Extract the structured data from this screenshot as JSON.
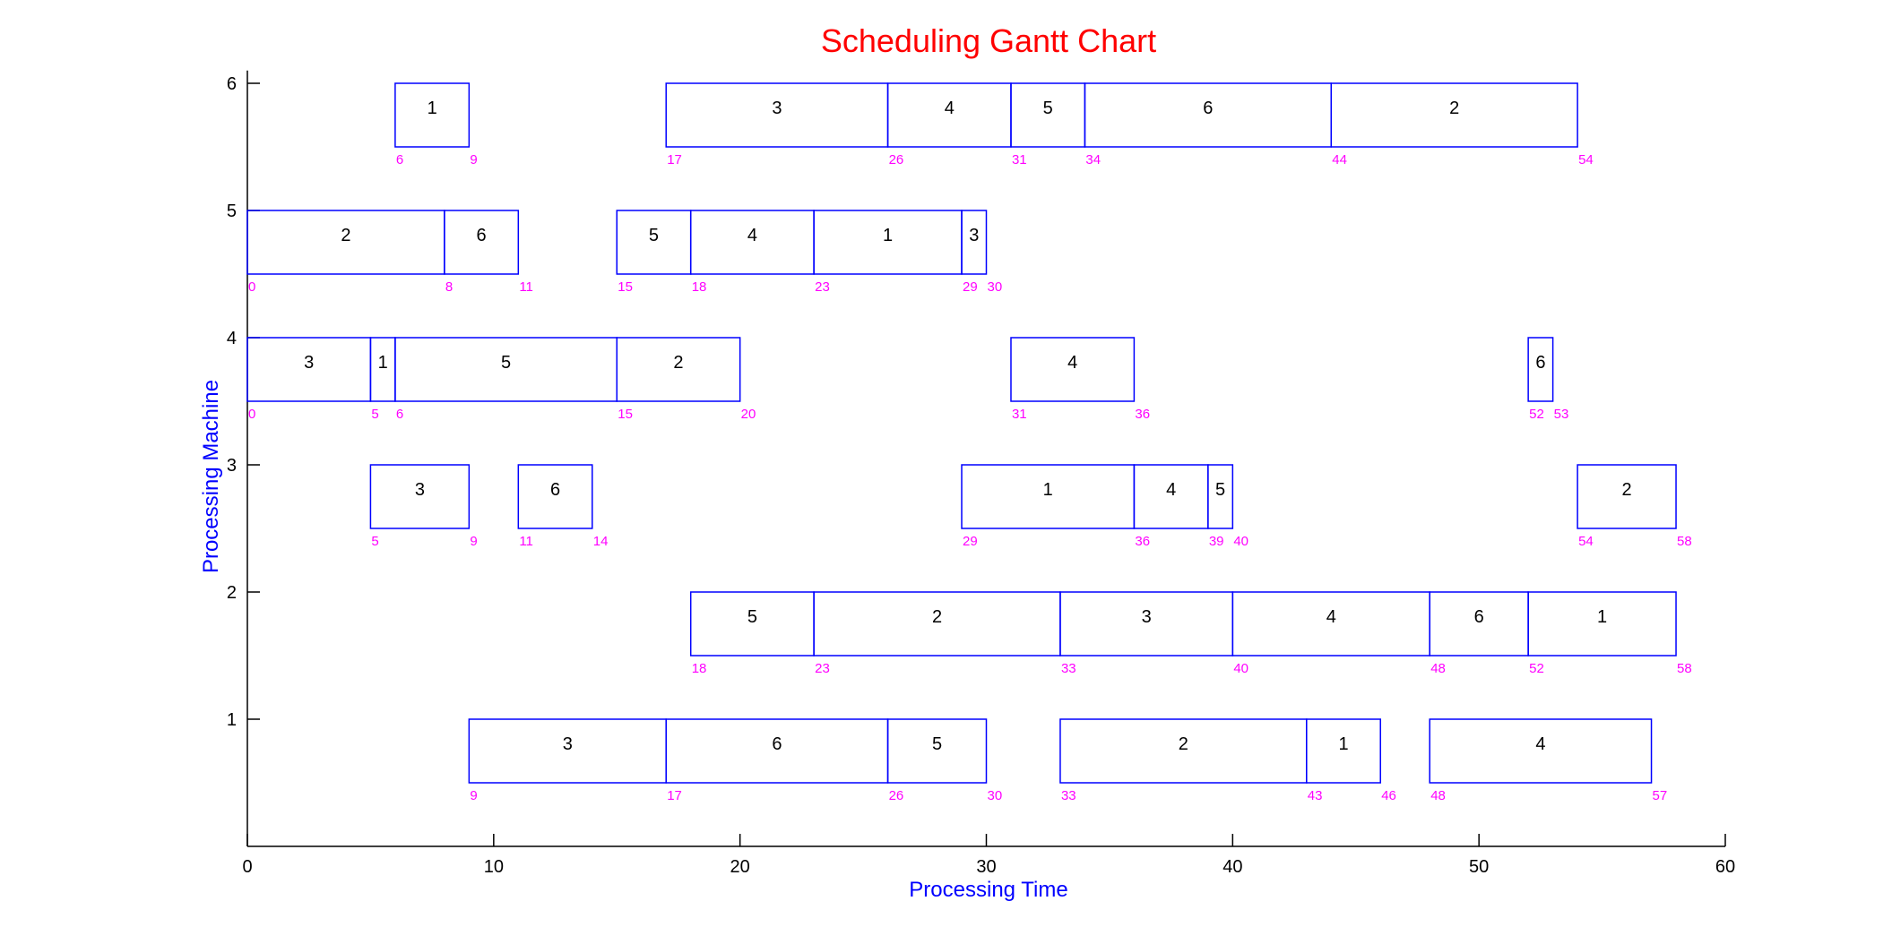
{
  "chart_data": {
    "type": "gantt",
    "title": "Scheduling Gantt Chart",
    "xlabel": "Processing Time",
    "ylabel": "Processing Machine",
    "xlim": [
      0,
      60
    ],
    "ylim": [
      0,
      6.1
    ],
    "xticks": [
      "0",
      "10",
      "20",
      "30",
      "40",
      "50",
      "60"
    ],
    "yticks": [
      "1",
      "2",
      "3",
      "4",
      "5",
      "6"
    ],
    "grid": false,
    "colors": {
      "title": "#ff0000",
      "axis_label": "#0000ff",
      "bar_edge": "#0000ff",
      "time_label": "#ff00ff",
      "axis": "#000000"
    },
    "machines": [
      {
        "machine": 1,
        "tasks": [
          {
            "job": "3",
            "start": 9,
            "end": 17
          },
          {
            "job": "6",
            "start": 17,
            "end": 26
          },
          {
            "job": "5",
            "start": 26,
            "end": 30
          },
          {
            "job": "2",
            "start": 33,
            "end": 43
          },
          {
            "job": "1",
            "start": 43,
            "end": 46
          },
          {
            "job": "4",
            "start": 48,
            "end": 57
          }
        ],
        "time_labels": [
          {
            "value": 9,
            "text": "9"
          },
          {
            "value": 17,
            "text": "17"
          },
          {
            "value": 26,
            "text": "26"
          },
          {
            "value": 30,
            "text": "30"
          },
          {
            "value": 33,
            "text": "33"
          },
          {
            "value": 43,
            "text": "43"
          },
          {
            "value": 46,
            "text": "46"
          },
          {
            "value": 48,
            "text": "48"
          },
          {
            "value": 57,
            "text": "57"
          }
        ]
      },
      {
        "machine": 2,
        "tasks": [
          {
            "job": "5",
            "start": 18,
            "end": 23
          },
          {
            "job": "2",
            "start": 23,
            "end": 33
          },
          {
            "job": "3",
            "start": 33,
            "end": 40
          },
          {
            "job": "4",
            "start": 40,
            "end": 48
          },
          {
            "job": "6",
            "start": 48,
            "end": 52
          },
          {
            "job": "1",
            "start": 52,
            "end": 58
          }
        ],
        "time_labels": [
          {
            "value": 18,
            "text": "18"
          },
          {
            "value": 23,
            "text": "23"
          },
          {
            "value": 33,
            "text": "33"
          },
          {
            "value": 40,
            "text": "40"
          },
          {
            "value": 48,
            "text": "48"
          },
          {
            "value": 52,
            "text": "52"
          },
          {
            "value": 58,
            "text": "58"
          }
        ]
      },
      {
        "machine": 3,
        "tasks": [
          {
            "job": "3",
            "start": 5,
            "end": 9
          },
          {
            "job": "6",
            "start": 11,
            "end": 14
          },
          {
            "job": "1",
            "start": 29,
            "end": 36
          },
          {
            "job": "4",
            "start": 36,
            "end": 39
          },
          {
            "job": "5",
            "start": 39,
            "end": 40
          },
          {
            "job": "2",
            "start": 54,
            "end": 58
          }
        ],
        "time_labels": [
          {
            "value": 5,
            "text": "5"
          },
          {
            "value": 9,
            "text": "9"
          },
          {
            "value": 11,
            "text": "11"
          },
          {
            "value": 14,
            "text": "14"
          },
          {
            "value": 29,
            "text": "29"
          },
          {
            "value": 36,
            "text": "36"
          },
          {
            "value": 39,
            "text": "39"
          },
          {
            "value": 40,
            "text": "40"
          },
          {
            "value": 54,
            "text": "54"
          },
          {
            "value": 58,
            "text": "58"
          }
        ]
      },
      {
        "machine": 4,
        "tasks": [
          {
            "job": "3",
            "start": 0,
            "end": 5
          },
          {
            "job": "1",
            "start": 5,
            "end": 6
          },
          {
            "job": "5",
            "start": 6,
            "end": 15
          },
          {
            "job": "2",
            "start": 15,
            "end": 20
          },
          {
            "job": "4",
            "start": 31,
            "end": 36
          },
          {
            "job": "6",
            "start": 52,
            "end": 53
          }
        ],
        "time_labels": [
          {
            "value": 0,
            "text": "0"
          },
          {
            "value": 5,
            "text": "5"
          },
          {
            "value": 6,
            "text": "6"
          },
          {
            "value": 15,
            "text": "15"
          },
          {
            "value": 20,
            "text": "20"
          },
          {
            "value": 31,
            "text": "31"
          },
          {
            "value": 36,
            "text": "36"
          },
          {
            "value": 52,
            "text": "52"
          },
          {
            "value": 53,
            "text": "53"
          }
        ]
      },
      {
        "machine": 5,
        "tasks": [
          {
            "job": "2",
            "start": 0,
            "end": 8
          },
          {
            "job": "6",
            "start": 8,
            "end": 11
          },
          {
            "job": "5",
            "start": 15,
            "end": 18
          },
          {
            "job": "4",
            "start": 18,
            "end": 23
          },
          {
            "job": "1",
            "start": 23,
            "end": 29
          },
          {
            "job": "3",
            "start": 29,
            "end": 30
          }
        ],
        "time_labels": [
          {
            "value": 0,
            "text": "0"
          },
          {
            "value": 8,
            "text": "8"
          },
          {
            "value": 11,
            "text": "11"
          },
          {
            "value": 15,
            "text": "15"
          },
          {
            "value": 18,
            "text": "18"
          },
          {
            "value": 23,
            "text": "23"
          },
          {
            "value": 29,
            "text": "29"
          },
          {
            "value": 30,
            "text": "30"
          }
        ]
      },
      {
        "machine": 6,
        "tasks": [
          {
            "job": "1",
            "start": 6,
            "end": 9
          },
          {
            "job": "3",
            "start": 17,
            "end": 26
          },
          {
            "job": "4",
            "start": 26,
            "end": 31
          },
          {
            "job": "5",
            "start": 31,
            "end": 34
          },
          {
            "job": "6",
            "start": 34,
            "end": 44
          },
          {
            "job": "2",
            "start": 44,
            "end": 54
          }
        ],
        "time_labels": [
          {
            "value": 6,
            "text": "6"
          },
          {
            "value": 9,
            "text": "9"
          },
          {
            "value": 17,
            "text": "17"
          },
          {
            "value": 26,
            "text": "26"
          },
          {
            "value": 31,
            "text": "31"
          },
          {
            "value": 34,
            "text": "34"
          },
          {
            "value": 44,
            "text": "44"
          },
          {
            "value": 54,
            "text": "54"
          }
        ]
      }
    ]
  }
}
